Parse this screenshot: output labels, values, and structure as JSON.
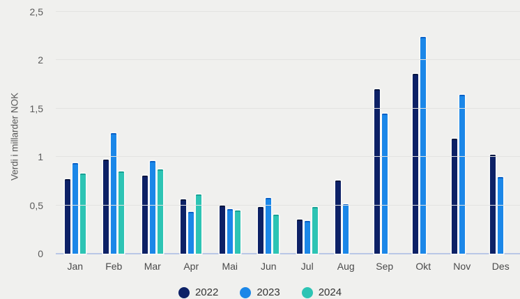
{
  "chart_data": {
    "type": "bar",
    "title": "",
    "xlabel": "",
    "ylabel": "Verdi i millarder NOK",
    "ylim": [
      0,
      2.5
    ],
    "grid": true,
    "legend_position": "bottom",
    "categories": [
      "Jan",
      "Feb",
      "Mar",
      "Apr",
      "Mai",
      "Jun",
      "Jul",
      "Aug",
      "Sep",
      "Okt",
      "Nov",
      "Des"
    ],
    "yticks": [
      {
        "v": 0,
        "label": "0"
      },
      {
        "v": 0.5,
        "label": "0,5"
      },
      {
        "v": 1,
        "label": "1"
      },
      {
        "v": 1.5,
        "label": "1,5"
      },
      {
        "v": 2,
        "label": "2"
      },
      {
        "v": 2.5,
        "label": "2,5"
      }
    ],
    "series": [
      {
        "name": "2022",
        "color": "#0d2166",
        "edge_color": "#071540",
        "values": [
          0.77,
          0.97,
          0.81,
          0.56,
          0.5,
          0.48,
          0.35,
          0.76,
          1.7,
          1.86,
          1.19,
          1.02
        ]
      },
      {
        "name": "2023",
        "color": "#1b87e8",
        "edge_color": "#0b61c6",
        "values": [
          0.94,
          1.25,
          0.96,
          0.43,
          0.46,
          0.58,
          0.34,
          0.51,
          1.45,
          2.24,
          1.64,
          0.79
        ]
      },
      {
        "name": "2024",
        "color": "#2dc4b4",
        "edge_color": "#19a295",
        "values": [
          0.83,
          0.85,
          0.87,
          0.61,
          0.45,
          0.4,
          0.48,
          null,
          null,
          null,
          null,
          null
        ]
      }
    ]
  }
}
